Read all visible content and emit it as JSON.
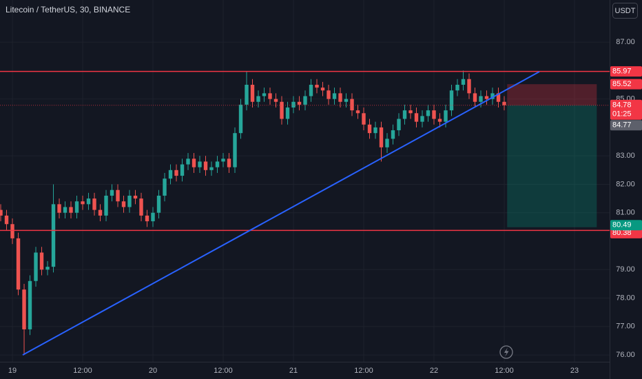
{
  "header": {
    "title": "Litecoin / TetherUS, 30, BINANCE",
    "currency": "USDT"
  },
  "chart_data": {
    "type": "candlestick",
    "x": [
      -2,
      -1,
      0,
      1,
      2,
      3,
      4,
      5,
      6,
      7,
      8,
      9,
      10,
      11,
      12,
      13,
      14,
      15,
      16,
      17,
      18,
      19,
      20,
      21,
      22,
      23,
      24,
      25,
      26,
      27,
      28,
      29,
      30,
      31,
      32,
      33,
      34,
      35,
      36,
      37,
      38,
      39,
      40,
      41,
      42,
      43,
      44,
      45,
      46,
      47,
      48,
      49,
      50,
      51,
      52,
      53,
      54,
      55,
      56,
      57,
      58,
      59,
      60,
      61,
      62,
      63,
      64,
      65,
      66,
      67,
      68,
      69,
      70,
      71,
      72,
      73,
      74,
      75,
      76,
      77,
      78,
      79,
      80,
      81,
      82,
      83,
      84
    ],
    "open": [
      81.1,
      80.9,
      80.6,
      80.1,
      78.3,
      76.9,
      78.6,
      79.6,
      79.0,
      79.1,
      81.3,
      81.0,
      81.2,
      81.0,
      81.4,
      81.3,
      81.5,
      81.1,
      80.9,
      81.6,
      81.8,
      81.4,
      81.2,
      81.6,
      81.5,
      80.9,
      80.7,
      81.0,
      81.6,
      82.2,
      82.5,
      82.3,
      82.7,
      82.9,
      82.6,
      82.8,
      82.5,
      82.6,
      82.8,
      82.9,
      82.6,
      83.8,
      84.8,
      85.5,
      84.9,
      85.1,
      85.2,
      85.0,
      84.9,
      84.3,
      84.7,
      84.9,
      84.8,
      85.1,
      85.5,
      85.4,
      85.3,
      85.0,
      85.2,
      84.9,
      85.0,
      84.6,
      84.5,
      84.1,
      83.8,
      84.0,
      83.3,
      83.6,
      83.9,
      84.3,
      84.6,
      84.5,
      84.2,
      84.4,
      84.6,
      84.3,
      84.2,
      84.6,
      85.3,
      85.5,
      85.7,
      85.2,
      84.9,
      85.1,
      85.0,
      85.2,
      84.9
    ],
    "high": [
      81.3,
      81.1,
      80.8,
      80.3,
      78.5,
      78.8,
      79.8,
      79.8,
      79.3,
      82.0,
      81.5,
      81.4,
      81.4,
      81.6,
      81.6,
      81.7,
      81.7,
      81.3,
      81.8,
      82.0,
      82.0,
      81.6,
      81.8,
      81.8,
      81.7,
      81.1,
      81.2,
      81.8,
      82.4,
      82.7,
      82.7,
      82.9,
      83.1,
      83.1,
      83.0,
      83.0,
      82.8,
      83.0,
      83.1,
      83.1,
      84.0,
      85.0,
      85.97,
      85.7,
      85.3,
      85.4,
      85.4,
      85.2,
      85.1,
      84.9,
      85.1,
      85.1,
      85.3,
      85.7,
      85.7,
      85.6,
      85.5,
      85.4,
      85.4,
      85.2,
      85.2,
      84.8,
      84.7,
      84.3,
      84.2,
      84.2,
      83.8,
      84.1,
      84.5,
      84.8,
      84.8,
      84.7,
      84.6,
      84.8,
      84.8,
      84.5,
      84.8,
      85.5,
      85.7,
      86.0,
      85.9,
      85.4,
      85.3,
      85.3,
      85.4,
      85.4,
      85.1
    ],
    "low": [
      80.7,
      80.4,
      79.9,
      78.1,
      76.0,
      76.7,
      78.4,
      78.8,
      78.8,
      78.9,
      80.8,
      80.8,
      80.8,
      80.8,
      81.1,
      81.1,
      80.9,
      80.7,
      80.7,
      81.4,
      81.2,
      81.0,
      81.0,
      81.3,
      80.7,
      80.5,
      80.5,
      80.8,
      81.4,
      82.0,
      82.1,
      82.1,
      82.5,
      82.4,
      82.4,
      82.3,
      82.3,
      82.4,
      82.6,
      82.4,
      82.4,
      83.6,
      84.6,
      84.7,
      84.7,
      84.9,
      84.8,
      84.7,
      84.1,
      84.1,
      84.5,
      84.6,
      84.6,
      84.9,
      85.2,
      85.1,
      84.8,
      84.8,
      84.7,
      84.7,
      84.4,
      84.3,
      83.9,
      83.6,
      83.6,
      82.8,
      83.1,
      83.4,
      83.7,
      84.1,
      84.3,
      84.0,
      84.0,
      84.2,
      84.1,
      84.0,
      84.0,
      84.4,
      85.1,
      85.3,
      85.0,
      84.7,
      84.7,
      84.8,
      84.8,
      84.7,
      84.6
    ],
    "close": [
      80.9,
      80.6,
      80.1,
      78.3,
      76.9,
      78.6,
      79.6,
      79.0,
      79.1,
      81.3,
      81.0,
      81.2,
      81.0,
      81.4,
      81.3,
      81.5,
      81.1,
      80.9,
      81.6,
      81.8,
      81.4,
      81.2,
      81.6,
      81.5,
      80.9,
      80.7,
      81.0,
      81.6,
      82.2,
      82.5,
      82.3,
      82.7,
      82.9,
      82.6,
      82.8,
      82.5,
      82.6,
      82.8,
      82.9,
      82.6,
      83.8,
      84.8,
      85.5,
      84.9,
      85.1,
      85.2,
      85.0,
      84.9,
      84.3,
      84.7,
      84.9,
      84.8,
      85.1,
      85.5,
      85.4,
      85.3,
      85.0,
      85.2,
      84.9,
      85.0,
      84.6,
      84.5,
      84.1,
      83.8,
      84.0,
      83.3,
      83.6,
      83.9,
      84.3,
      84.6,
      84.5,
      84.2,
      84.4,
      84.6,
      84.3,
      84.2,
      84.6,
      85.3,
      85.5,
      85.7,
      85.2,
      84.9,
      85.1,
      85.0,
      85.2,
      84.9,
      84.78
    ],
    "up_color": "#26a69a",
    "down_color": "#ef5350",
    "xlim": [
      -2.12,
      102
    ],
    "xticks": [
      {
        "value": 0,
        "label": "19"
      },
      {
        "value": 12,
        "label": "12:00"
      },
      {
        "value": 24,
        "label": "20"
      },
      {
        "value": 36,
        "label": "12:00"
      },
      {
        "value": 48,
        "label": "21"
      },
      {
        "value": 60,
        "label": "12:00"
      },
      {
        "value": 72,
        "label": "22"
      },
      {
        "value": 84,
        "label": "12:00"
      },
      {
        "value": 96,
        "label": "23"
      }
    ],
    "ylim": [
      75.76,
      88.48
    ],
    "yticks": [
      {
        "value": 76,
        "label": "76.00"
      },
      {
        "value": 77,
        "label": "77.00"
      },
      {
        "value": 78,
        "label": "78.00"
      },
      {
        "value": 79,
        "label": "79.00"
      },
      {
        "value": 81,
        "label": "81.00"
      },
      {
        "value": 82,
        "label": "82.00"
      },
      {
        "value": 83,
        "label": "83.00"
      },
      {
        "value": 85,
        "label": "85.00"
      },
      {
        "value": 87,
        "label": "87.00"
      }
    ],
    "grid": true,
    "horizontal_lines": {
      "values": [
        85.97,
        80.38
      ],
      "color": "#f23645"
    },
    "trendline": {
      "x": [
        1.76,
        90
      ],
      "y": [
        76.0,
        85.96
      ],
      "color": "#2962ff"
    },
    "position": {
      "x": [
        84.5,
        99.8
      ],
      "entry": 84.78,
      "stop": 85.52,
      "target": 80.49,
      "stop_color": "#f23645",
      "target_color": "#089981"
    },
    "last_price": {
      "value": 84.78,
      "countdown": "01:25",
      "color": "#f23645"
    },
    "prev_price": {
      "value": 84.77,
      "color": "#5d606b"
    }
  }
}
